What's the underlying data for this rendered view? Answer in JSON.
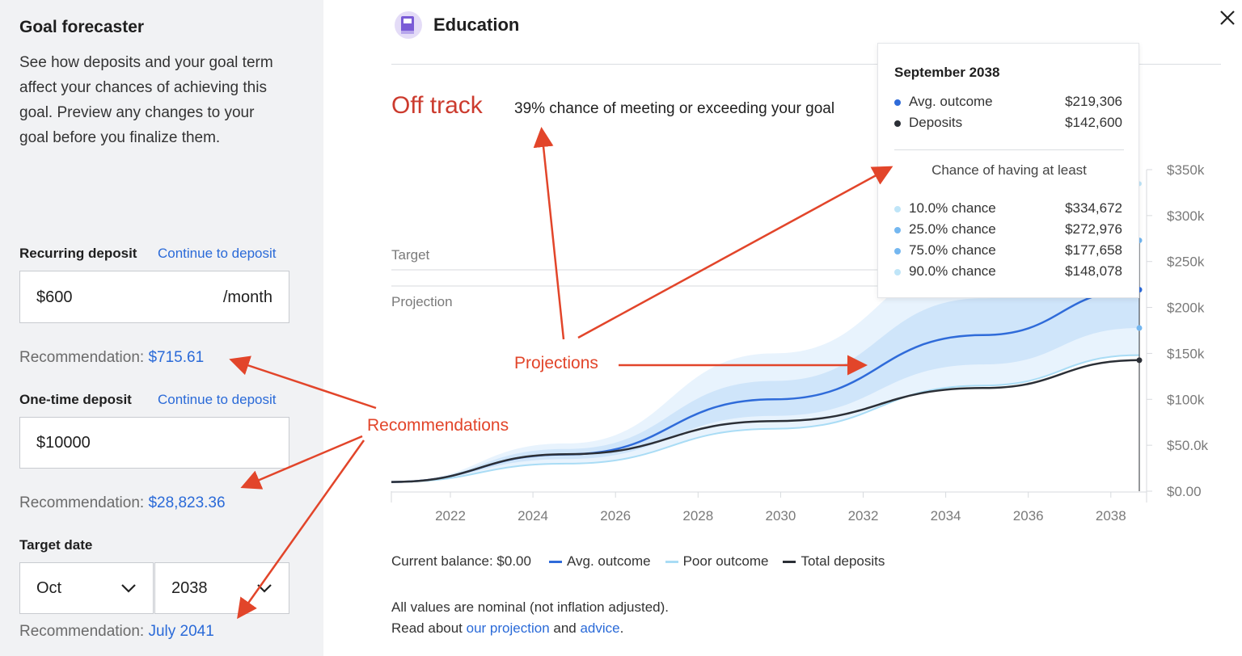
{
  "sidebar": {
    "title": "Goal forecaster",
    "description": "See how deposits and your goal term affect your chances of achieving this goal. Preview any changes to your goal before you finalize them.",
    "recurring": {
      "label": "Recurring deposit",
      "link": "Continue to deposit",
      "value": "$600",
      "suffix": "/month",
      "rec_label": "Recommendation: ",
      "rec_value": "$715.61"
    },
    "onetime": {
      "label": "One-time deposit",
      "link": "Continue to deposit",
      "value": "$10000",
      "rec_label": "Recommendation: ",
      "rec_value": "$28,823.36"
    },
    "target": {
      "label": "Target date",
      "month": "Oct",
      "year": "2038",
      "rec_label": "Recommendation: ",
      "rec_value": "July 2041"
    }
  },
  "header": {
    "title": "Education",
    "icon": "book-icon"
  },
  "status": {
    "label": "Off track",
    "text": "39% chance of meeting or exceeding your goal"
  },
  "chart_labels": {
    "target": "Target",
    "projection": "Projection"
  },
  "tooltip": {
    "title": "September 2038",
    "rows": [
      {
        "label": "Avg. outcome",
        "value": "$219,306"
      },
      {
        "label": "Deposits",
        "value": "$142,600"
      }
    ],
    "subtitle": "Chance of having at least",
    "chances": [
      {
        "label": "10.0% chance",
        "value": "$334,672"
      },
      {
        "label": "25.0% chance",
        "value": "$272,976"
      },
      {
        "label": "75.0% chance",
        "value": "$177,658"
      },
      {
        "label": "90.0% chance",
        "value": "$148,078"
      }
    ]
  },
  "chart_data": {
    "type": "area",
    "x_ticks": [
      "2022",
      "2024",
      "2026",
      "2028",
      "2030",
      "2032",
      "2034",
      "2036",
      "2038"
    ],
    "y_ticks": [
      "$0.00",
      "$50.0k",
      "$100k",
      "$150k",
      "$200k",
      "$250k",
      "$300k",
      "$350k"
    ],
    "ylim": [
      0,
      350000
    ],
    "xlim": [
      2020.8,
      2038.75
    ],
    "x": [
      2020.8,
      2025,
      2030,
      2035,
      2038.75
    ],
    "series": [
      {
        "name": "Avg. outcome",
        "color": "#2f6bd9",
        "values": [
          10000,
          40000,
          100000,
          170000,
          219306
        ]
      },
      {
        "name": "Poor outcome",
        "color": "#a9dcf5",
        "values": [
          10000,
          30000,
          68000,
          115000,
          148078
        ]
      },
      {
        "name": "Total deposits",
        "color": "#2b2f36",
        "values": [
          10000,
          40300,
          76300,
          112300,
          142600
        ]
      }
    ],
    "bands": [
      {
        "name": "10-90",
        "color": "#e8f3fd",
        "low": [
          10000,
          30000,
          68000,
          115000,
          148078
        ],
        "high": [
          10000,
          52000,
          150000,
          255000,
          334672
        ]
      },
      {
        "name": "25-75",
        "color": "#cfe5fa",
        "low": [
          10000,
          35000,
          82000,
          138000,
          177658
        ],
        "high": [
          10000,
          46000,
          120000,
          210000,
          272976
        ]
      }
    ]
  },
  "legend": {
    "balance": "Current balance: $0.00",
    "items": [
      {
        "label": "Avg. outcome",
        "color": "#2f6bd9"
      },
      {
        "label": "Poor outcome",
        "color": "#a9dcf5"
      },
      {
        "label": "Total deposits",
        "color": "#2b2f36"
      }
    ]
  },
  "footer": {
    "line1": "All values are nominal (not inflation adjusted).",
    "read": "Read about ",
    "link1": "our projection",
    "and": " and ",
    "link2": "advice",
    "end": "."
  },
  "annotations": {
    "projections": "Projections",
    "recommendations": "Recommendations"
  },
  "colors": {
    "accent": "#2a6ad8",
    "alert": "#cc3b2e",
    "annotation": "#e2452a"
  }
}
